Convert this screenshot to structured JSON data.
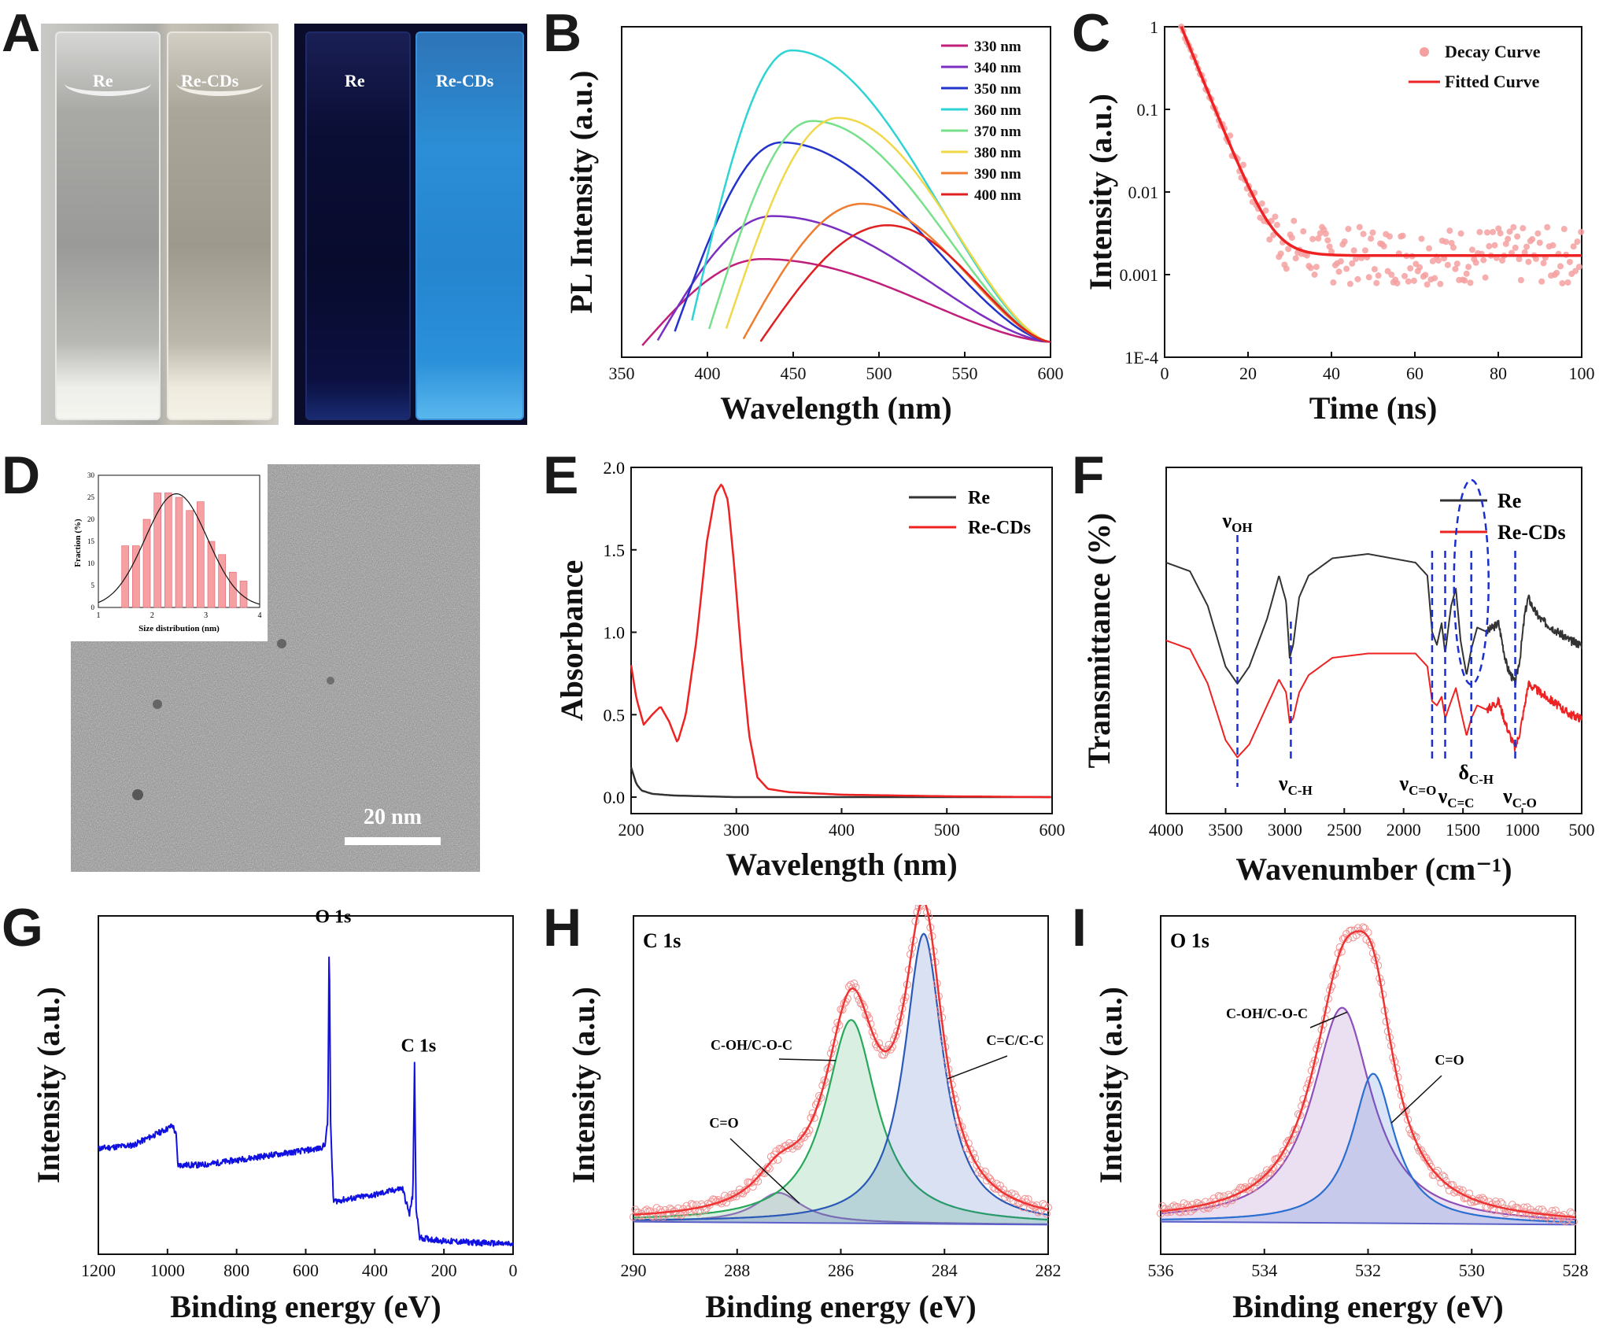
{
  "panels": {
    "A": {
      "letter": "A",
      "cuvettes_white": [
        "Re",
        "Re-CDs"
      ],
      "cuvettes_uv": [
        "Re",
        "Re-CDs"
      ]
    },
    "B": {
      "letter": "B"
    },
    "C": {
      "letter": "C"
    },
    "D": {
      "letter": "D",
      "scale_bar": "20 nm",
      "inset_xlabel": "Size distribution (nm)",
      "inset_ylabel": "Fraction (%)"
    },
    "E": {
      "letter": "E"
    },
    "F": {
      "letter": "F"
    },
    "G": {
      "letter": "G"
    },
    "H": {
      "letter": "H"
    },
    "I": {
      "letter": "I"
    }
  },
  "colors": {
    "uv_glow": "#2f8fd8",
    "survey": "#1010e0",
    "fit_red": "#ee2222",
    "abs_black": "#333333",
    "ftir_black": "#333333"
  },
  "chart_data": [
    {
      "id": "B",
      "type": "line",
      "xlabel": "Wavelength (nm)",
      "ylabel": "PL Intensity (a.u.)",
      "xlim": [
        350,
        600
      ],
      "xticks": [
        350,
        400,
        450,
        500,
        550,
        600
      ],
      "ylim": [
        0,
        1
      ],
      "legend": "top-right",
      "series": [
        {
          "name": "330 nm",
          "color": "#c0207a",
          "start": 362,
          "peak": 432,
          "amp": 0.32,
          "end": 0.05
        },
        {
          "name": "340 nm",
          "color": "#7a2fc0",
          "start": 371,
          "peak": 438,
          "amp": 0.46,
          "end": 0.05
        },
        {
          "name": "350 nm",
          "color": "#2233cc",
          "start": 381,
          "peak": 443,
          "amp": 0.7,
          "end": 0.05
        },
        {
          "name": "360 nm",
          "color": "#2ed4d4",
          "start": 391,
          "peak": 449,
          "amp": 1.0,
          "end": 0.05
        },
        {
          "name": "370 nm",
          "color": "#77e08a",
          "start": 401,
          "peak": 461,
          "amp": 0.77,
          "end": 0.05
        },
        {
          "name": "380 nm",
          "color": "#f0d84a",
          "start": 411,
          "peak": 476,
          "amp": 0.78,
          "end": 0.05
        },
        {
          "name": "390 nm",
          "color": "#f07c30",
          "start": 421,
          "peak": 490,
          "amp": 0.5,
          "end": 0.05
        },
        {
          "name": "400 nm",
          "color": "#e02020",
          "start": 431,
          "peak": 505,
          "amp": 0.43,
          "end": 0.05
        }
      ]
    },
    {
      "id": "C",
      "type": "scatter",
      "xlabel": "Time (ns)",
      "ylabel": "Intensity (a.u.)",
      "xlim": [
        0,
        100
      ],
      "xticks": [
        0,
        20,
        40,
        60,
        80,
        100
      ],
      "yscale": "log",
      "ylim": [
        0.0001,
        1
      ],
      "ytick_labels": [
        "1E-4",
        "0.001",
        "0.01",
        "0.1",
        "1"
      ],
      "legend": "top-right",
      "series": [
        {
          "name": "Decay Curve",
          "color": "#f4a0a0",
          "marker": "circle"
        },
        {
          "name": "Fitted Curve",
          "color": "#ee2222",
          "marker": "line"
        }
      ],
      "fit": {
        "t0": 4,
        "tau": 3.5,
        "baseline": 0.0017
      }
    },
    {
      "id": "D-inset",
      "type": "bar",
      "xlabel": "Size distribution (nm)",
      "ylabel": "Fraction (%)",
      "xlim": [
        1,
        4
      ],
      "xticks": [
        1,
        2,
        3,
        4
      ],
      "ylim": [
        0,
        30
      ],
      "yticks": [
        0,
        5,
        10,
        15,
        20,
        25,
        30
      ],
      "x": [
        1.5,
        1.7,
        1.9,
        2.1,
        2.3,
        2.5,
        2.7,
        2.9,
        3.1,
        3.3,
        3.5,
        3.7
      ],
      "values": [
        14,
        14,
        20,
        26,
        26,
        25,
        22,
        24,
        15,
        12,
        8,
        6
      ],
      "gauss": {
        "mean": 2.45,
        "sigma": 0.58,
        "peak": 25.8
      }
    },
    {
      "id": "E",
      "type": "line",
      "xlabel": "Wavelength (nm)",
      "ylabel": "Absorbance",
      "xlim": [
        200,
        600
      ],
      "xticks": [
        200,
        300,
        400,
        500,
        600
      ],
      "ylim": [
        -0.1,
        2.0
      ],
      "yticks": [
        0.0,
        0.5,
        1.0,
        1.5,
        2.0
      ],
      "ytick_labels": [
        "0.0",
        "0.5",
        "1.0",
        "1.5",
        "2.0"
      ],
      "legend": "top-right",
      "series": [
        {
          "name": "Re",
          "color": "#333333",
          "points": [
            [
              200,
              0.18
            ],
            [
              205,
              0.08
            ],
            [
              210,
              0.04
            ],
            [
              220,
              0.02
            ],
            [
              240,
              0.01
            ],
            [
              300,
              0.0
            ],
            [
              600,
              0.0
            ]
          ]
        },
        {
          "name": "Re-CDs",
          "color": "#ee2222",
          "points": [
            [
              200,
              0.8
            ],
            [
              205,
              0.6
            ],
            [
              212,
              0.44
            ],
            [
              220,
              0.5
            ],
            [
              228,
              0.55
            ],
            [
              236,
              0.46
            ],
            [
              244,
              0.33
            ],
            [
              252,
              0.5
            ],
            [
              262,
              0.95
            ],
            [
              272,
              1.55
            ],
            [
              280,
              1.84
            ],
            [
              286,
              1.9
            ],
            [
              292,
              1.8
            ],
            [
              298,
              1.4
            ],
            [
              305,
              0.85
            ],
            [
              312,
              0.38
            ],
            [
              320,
              0.12
            ],
            [
              330,
              0.05
            ],
            [
              350,
              0.03
            ],
            [
              400,
              0.015
            ],
            [
              500,
              0.005
            ],
            [
              600,
              0.0
            ]
          ]
        }
      ]
    },
    {
      "id": "F",
      "type": "line",
      "xlabel": "Wavenumber (cm⁻¹)",
      "ylabel": "Transmittance (%)",
      "xlim": [
        4000,
        500
      ],
      "xticks": [
        4000,
        3500,
        3000,
        2500,
        2000,
        1500,
        1000,
        500
      ],
      "legend": "top-right",
      "series": [
        {
          "name": "Re",
          "color": "#333333",
          "points": [
            [
              4000,
              0.58
            ],
            [
              3800,
              0.56
            ],
            [
              3650,
              0.48
            ],
            [
              3500,
              0.34
            ],
            [
              3400,
              0.3
            ],
            [
              3300,
              0.34
            ],
            [
              3150,
              0.45
            ],
            [
              3050,
              0.55
            ],
            [
              2990,
              0.49
            ],
            [
              2960,
              0.36
            ],
            [
              2930,
              0.39
            ],
            [
              2880,
              0.5
            ],
            [
              2800,
              0.55
            ],
            [
              2600,
              0.59
            ],
            [
              2300,
              0.6
            ],
            [
              2100,
              0.59
            ],
            [
              1900,
              0.58
            ],
            [
              1800,
              0.55
            ],
            [
              1760,
              0.42
            ],
            [
              1720,
              0.39
            ],
            [
              1680,
              0.44
            ],
            [
              1650,
              0.37
            ],
            [
              1600,
              0.48
            ],
            [
              1560,
              0.52
            ],
            [
              1520,
              0.4
            ],
            [
              1470,
              0.32
            ],
            [
              1430,
              0.38
            ],
            [
              1380,
              0.43
            ],
            [
              1300,
              0.42
            ],
            [
              1200,
              0.44
            ],
            [
              1130,
              0.34
            ],
            [
              1060,
              0.3
            ],
            [
              1020,
              0.36
            ],
            [
              980,
              0.46
            ],
            [
              950,
              0.5
            ],
            [
              900,
              0.47
            ],
            [
              850,
              0.45
            ],
            [
              800,
              0.44
            ],
            [
              700,
              0.42
            ],
            [
              600,
              0.4
            ],
            [
              500,
              0.39
            ]
          ]
        },
        {
          "name": "Re-CDs",
          "color": "#ee2222",
          "points": [
            [
              4000,
              0.4
            ],
            [
              3800,
              0.38
            ],
            [
              3650,
              0.3
            ],
            [
              3500,
              0.17
            ],
            [
              3400,
              0.13
            ],
            [
              3300,
              0.16
            ],
            [
              3150,
              0.25
            ],
            [
              3050,
              0.31
            ],
            [
              2990,
              0.28
            ],
            [
              2960,
              0.21
            ],
            [
              2930,
              0.22
            ],
            [
              2880,
              0.28
            ],
            [
              2800,
              0.32
            ],
            [
              2600,
              0.36
            ],
            [
              2300,
              0.37
            ],
            [
              2100,
              0.37
            ],
            [
              1900,
              0.37
            ],
            [
              1800,
              0.34
            ],
            [
              1760,
              0.26
            ],
            [
              1720,
              0.25
            ],
            [
              1680,
              0.27
            ],
            [
              1650,
              0.22
            ],
            [
              1600,
              0.26
            ],
            [
              1560,
              0.29
            ],
            [
              1520,
              0.24
            ],
            [
              1470,
              0.18
            ],
            [
              1430,
              0.22
            ],
            [
              1380,
              0.25
            ],
            [
              1300,
              0.24
            ],
            [
              1200,
              0.26
            ],
            [
              1130,
              0.2
            ],
            [
              1060,
              0.15
            ],
            [
              1020,
              0.19
            ],
            [
              980,
              0.25
            ],
            [
              950,
              0.3
            ],
            [
              900,
              0.29
            ],
            [
              850,
              0.28
            ],
            [
              800,
              0.27
            ],
            [
              700,
              0.25
            ],
            [
              600,
              0.23
            ],
            [
              500,
              0.22
            ]
          ]
        }
      ],
      "annotations": [
        {
          "text": "ν",
          "sub": "OH",
          "x": 3400
        },
        {
          "text": "ν",
          "sub": "C-H",
          "x": 2950
        },
        {
          "text": "ν",
          "sub": "C=O",
          "x": 1760
        },
        {
          "text": "ν",
          "sub": "C=C",
          "x": 1650
        },
        {
          "text": "δ",
          "sub": "C-H",
          "x": 1430
        },
        {
          "text": "ν",
          "sub": "C-O",
          "x": 1060
        }
      ]
    },
    {
      "id": "G",
      "type": "line",
      "xlabel": "Binding energy (eV)",
      "ylabel": "Intensity (a.u.)",
      "xlim": [
        1200,
        0
      ],
      "xticks": [
        1200,
        1000,
        800,
        600,
        400,
        200,
        0
      ],
      "series": [
        {
          "name": "",
          "color": "#1010e0",
          "points": [
            [
              1200,
              0.32
            ],
            [
              1100,
              0.33
            ],
            [
              1000,
              0.38
            ],
            [
              985,
              0.39
            ],
            [
              975,
              0.36
            ],
            [
              970,
              0.27
            ],
            [
              900,
              0.27
            ],
            [
              700,
              0.3
            ],
            [
              560,
              0.32
            ],
            [
              545,
              0.33
            ],
            [
              536,
              0.4
            ],
            [
              532,
              0.97
            ],
            [
              528,
              0.4
            ],
            [
              520,
              0.16
            ],
            [
              400,
              0.18
            ],
            [
              320,
              0.2
            ],
            [
              300,
              0.12
            ],
            [
              290,
              0.18
            ],
            [
              285,
              0.58
            ],
            [
              281,
              0.14
            ],
            [
              270,
              0.05
            ],
            [
              200,
              0.04
            ],
            [
              0,
              0.03
            ]
          ]
        }
      ],
      "annotations": [
        {
          "text": "O 1s",
          "x": 532
        },
        {
          "text": "C 1s",
          "x": 285
        }
      ]
    },
    {
      "id": "H",
      "type": "line",
      "xlabel": "Binding energy (eV)",
      "ylabel": "Intensity (a.u.)",
      "xlim": [
        290,
        282
      ],
      "xticks": [
        290,
        288,
        286,
        284,
        282
      ],
      "title": "C 1s",
      "components": [
        {
          "label": "C=O",
          "center": 287.2,
          "fwhm": 1.1,
          "height": 0.1,
          "color": "#a067c8"
        },
        {
          "label": "C-OH/C-O-C",
          "center": 285.8,
          "fwhm": 1.2,
          "height": 0.68,
          "color": "#28a85a"
        },
        {
          "label": "C=C/C-C",
          "center": 284.4,
          "fwhm": 0.9,
          "height": 0.97,
          "color": "#2b59b8"
        }
      ],
      "envelope_color": "#ee3333"
    },
    {
      "id": "I",
      "type": "line",
      "xlabel": "Binding energy (eV)",
      "ylabel": "Intensity (a.u.)",
      "xlim": [
        536,
        528
      ],
      "xticks": [
        536,
        534,
        532,
        530,
        528
      ],
      "title": "O 1s",
      "components": [
        {
          "label": "C-OH/C-O-C",
          "center": 532.5,
          "fwhm": 1.4,
          "height": 0.72,
          "color": "#8e4fb8"
        },
        {
          "label": "C=O",
          "center": 531.9,
          "fwhm": 1.0,
          "height": 0.5,
          "color": "#2a6fd0"
        }
      ],
      "envelope_color": "#ee3333"
    }
  ]
}
